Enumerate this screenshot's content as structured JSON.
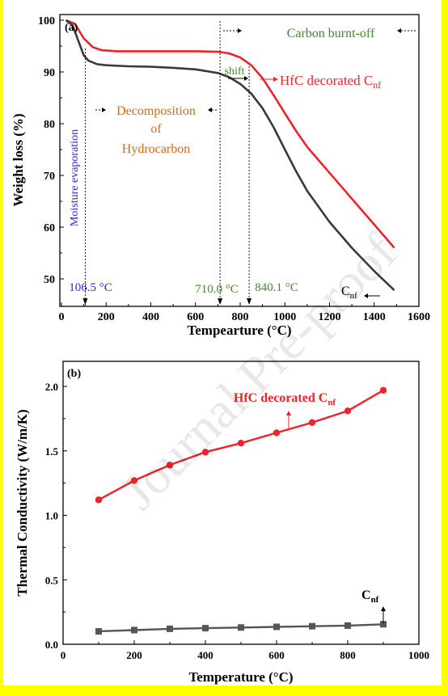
{
  "chart_data": [
    {
      "type": "line",
      "panel_label": "(a)",
      "xlabel": "Tempearture (°C)",
      "ylabel": "Weight loss (%)",
      "xlim": [
        0,
        1600
      ],
      "ylim": [
        47,
        101
      ],
      "xticks": [
        0,
        200,
        400,
        600,
        800,
        1000,
        1200,
        1400,
        1600
      ],
      "yticks": [
        50,
        60,
        70,
        80,
        90,
        100
      ],
      "series": [
        {
          "name": "HfC decorated C",
          "name_sub": "nf",
          "color": "#f0222a",
          "x": [
            20,
            60,
            100,
            140,
            180,
            250,
            400,
            500,
            600,
            700,
            750,
            800,
            850,
            900,
            950,
            1000,
            1050,
            1100,
            1200,
            1300,
            1400,
            1490
          ],
          "y": [
            100,
            99.3,
            96.5,
            94.8,
            94.2,
            94.0,
            94.0,
            94.0,
            94.0,
            93.9,
            93.6,
            92.8,
            91.3,
            88.8,
            85.5,
            82.0,
            78.6,
            75.5,
            70.5,
            65.5,
            60.5,
            56.0
          ]
        },
        {
          "name": "C",
          "name_sub": "nf",
          "color": "#3a3a3a",
          "x": [
            20,
            50,
            80,
            100,
            120,
            160,
            200,
            300,
            400,
            500,
            600,
            700,
            750,
            800,
            850,
            900,
            950,
            1000,
            1050,
            1100,
            1200,
            1300,
            1400,
            1490
          ],
          "y": [
            100,
            99.0,
            95.5,
            93.2,
            92.2,
            91.5,
            91.3,
            91.1,
            91.0,
            90.8,
            90.5,
            89.8,
            89.0,
            87.7,
            85.8,
            83.0,
            79.3,
            75.0,
            70.8,
            67.0,
            61.0,
            56.0,
            51.5,
            47.8
          ]
        }
      ],
      "annotations": {
        "moisture": "Moisture evaporation",
        "decomposition_1": "Decomposition",
        "decomposition_2": "of",
        "decomposition_3": "Hydrocarbon",
        "carbon": "Carbon burnt-off",
        "shift": "shift",
        "temp1": "106.5 °C",
        "temp2": "710.0 °C",
        "temp3": "840.1 °C"
      },
      "markers_x": [
        106.5,
        710.0,
        840.1
      ],
      "annotation_colors": {
        "blue": "#2b2bd6",
        "orange": "#d2691e",
        "green": "#3f8a2a"
      }
    },
    {
      "type": "line",
      "panel_label": "(b)",
      "xlabel": "Temperature (°C)",
      "ylabel": "Thermal Conductivity (W/m/K)",
      "xlim": [
        0,
        1000
      ],
      "ylim": [
        0,
        2.1
      ],
      "xticks": [
        0,
        200,
        400,
        600,
        800,
        1000
      ],
      "yticks": [
        0.0,
        0.5,
        1.0,
        1.5,
        2.0
      ],
      "series": [
        {
          "name": "HfC decorated C",
          "name_sub": "nf",
          "color": "#f0222a",
          "marker": "circle",
          "x": [
            100,
            200,
            300,
            400,
            500,
            600,
            700,
            800,
            900
          ],
          "y": [
            1.12,
            1.27,
            1.39,
            1.49,
            1.56,
            1.64,
            1.72,
            1.81,
            1.97
          ]
        },
        {
          "name": "C",
          "name_sub": "nf",
          "color": "#555555",
          "marker": "square",
          "x": [
            100,
            200,
            300,
            400,
            500,
            600,
            700,
            800,
            900
          ],
          "y": [
            0.1,
            0.11,
            0.12,
            0.125,
            0.13,
            0.135,
            0.14,
            0.145,
            0.155
          ]
        }
      ]
    }
  ],
  "watermark": "Journal Pre-proof",
  "highlight_color": "#ffff00"
}
